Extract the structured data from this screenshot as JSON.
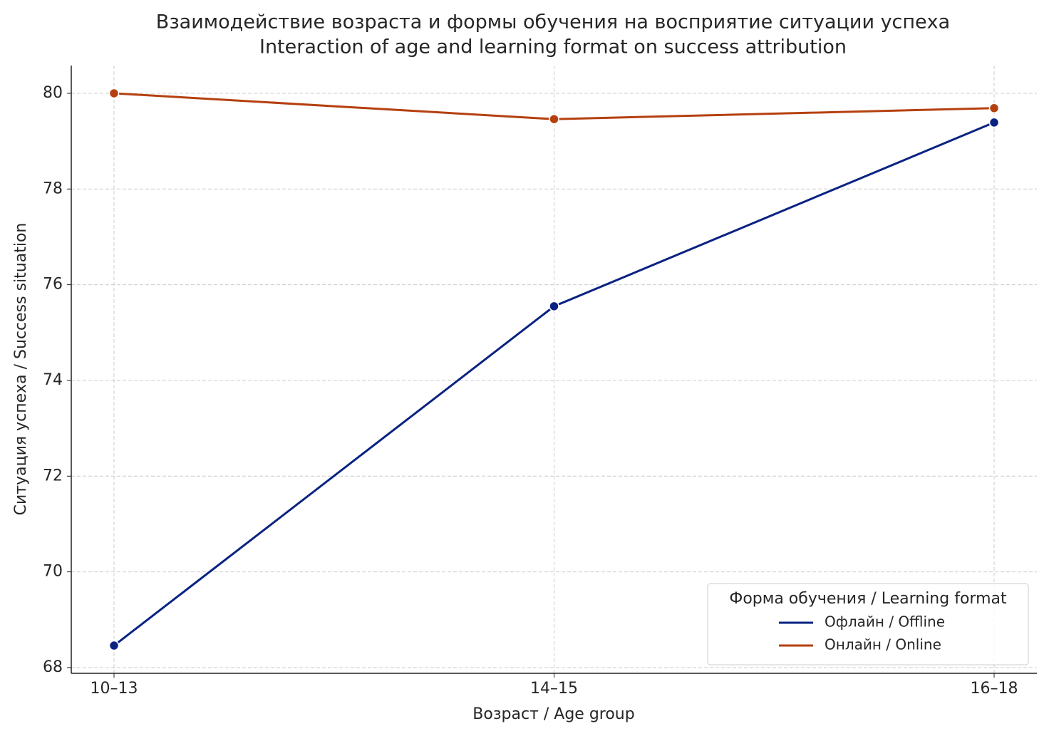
{
  "chart_data": {
    "type": "line",
    "title": "Взаимодействие возраста и формы обучения на восприятие ситуации успеха",
    "subtitle": "Interaction of age and learning format on success attribution",
    "x_label": "Возраст / Age group",
    "y_label": "Ситуация успеха / Success situation",
    "categories": [
      "10–13",
      "14–15",
      "16–18"
    ],
    "series": [
      {
        "name": "Офлайн / Offline",
        "color": "#0a2382",
        "values": [
          68.46,
          75.55,
          79.39
        ]
      },
      {
        "name": "Онлайн / Online",
        "color": "#b5400f",
        "values": [
          80.0,
          79.46,
          79.69
        ]
      }
    ],
    "ylim": [
      67.88,
      80.58
    ],
    "yticks": [
      68,
      70,
      72,
      74,
      76,
      78,
      80
    ],
    "grid": true,
    "legend_title": "Форма обучения / Learning format",
    "legend_position": "lower right"
  }
}
